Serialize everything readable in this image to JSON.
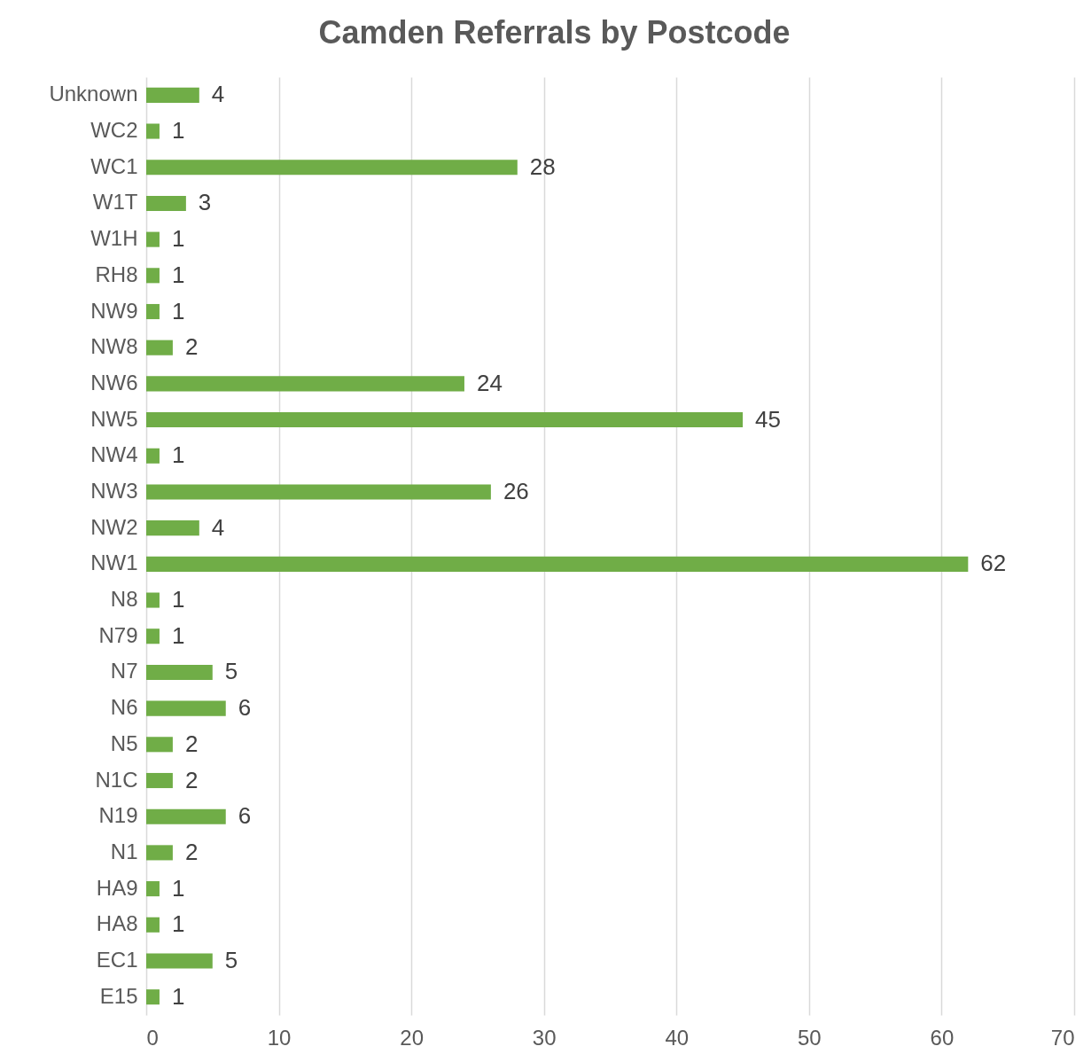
{
  "chart_data": {
    "type": "bar",
    "orientation": "horizontal",
    "title": "Camden Referrals by Postcode",
    "categories": [
      "Unknown",
      "WC2",
      "WC1",
      "W1T",
      "W1H",
      "RH8",
      "NW9",
      "NW8",
      "NW6",
      "NW5",
      "NW4",
      "NW3",
      "NW2",
      "NW1",
      "N8",
      "N79",
      "N7",
      "N6",
      "N5",
      "N1C",
      "N19",
      "N1",
      "HA9",
      "HA8",
      "EC1",
      "E15"
    ],
    "values": [
      4,
      1,
      28,
      3,
      1,
      1,
      1,
      2,
      24,
      45,
      1,
      26,
      4,
      62,
      1,
      1,
      5,
      6,
      2,
      2,
      6,
      2,
      1,
      1,
      5,
      1
    ],
    "color": "#70ad47",
    "xlim": [
      0,
      70
    ],
    "xticks": [
      0,
      10,
      20,
      30,
      40,
      50,
      60,
      70
    ],
    "grid": "x",
    "data_labels": true
  }
}
